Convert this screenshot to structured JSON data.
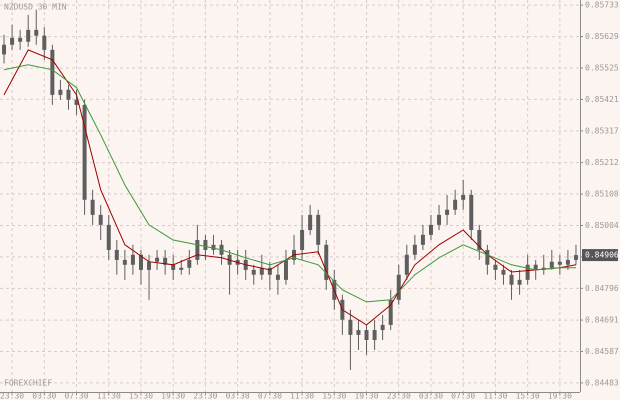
{
  "chart_data": {
    "type": "candlestick",
    "title": "NZDUSD 30 MIN",
    "watermark": "FOREXCHIEF",
    "ylim": [
      0.84453,
      0.8575
    ],
    "yticks": [
      0.85733,
      0.85629,
      0.85525,
      0.85421,
      0.85317,
      0.85212,
      0.85108,
      0.85004,
      {
        "value": 0.849,
        "label": "0.84900"
      },
      0.84796,
      0.84691,
      0.84587,
      0.84483
    ],
    "xlim": [
      -0.5,
      71.5
    ],
    "xticks": [
      {
        "value": 1,
        "label": "23:30"
      },
      {
        "value": 5,
        "label": "03:30"
      },
      {
        "value": 9,
        "label": "07:30"
      },
      {
        "value": 13,
        "label": "11:30"
      },
      {
        "value": 17,
        "label": "15:30"
      },
      {
        "value": 21,
        "label": "19:30"
      },
      {
        "value": 25,
        "label": "23:30"
      },
      {
        "value": 29,
        "label": "03:30"
      },
      {
        "value": 33,
        "label": "07:30"
      },
      {
        "value": 37,
        "label": "11:30"
      },
      {
        "value": 41,
        "label": "15:30"
      },
      {
        "value": 45,
        "label": "19:30"
      },
      {
        "value": 49,
        "label": "23:30"
      },
      {
        "value": 53,
        "label": "03:30"
      },
      {
        "value": 57,
        "label": "07:30"
      },
      {
        "value": 61,
        "label": "11:30"
      },
      {
        "value": 65,
        "label": "15:30"
      },
      {
        "value": 69,
        "label": "19:30"
      }
    ],
    "grid": true,
    "candle_color": "#5e5e5e",
    "open": [
      0.8557,
      0.85602,
      0.85625,
      0.85612,
      0.85651,
      0.85632,
      0.85585,
      0.85436,
      0.85453,
      0.8542,
      0.85403,
      0.85089,
      0.85039,
      0.85006,
      0.84923,
      0.8489,
      0.84874,
      0.84907,
      0.84857,
      0.84884,
      0.84897,
      0.84874,
      0.84857,
      0.84864,
      0.8489,
      0.84956,
      0.84923,
      0.8494,
      0.84907,
      0.84874,
      0.8489,
      0.84857,
      0.84841,
      0.84864,
      0.84841,
      0.84824,
      0.8489,
      0.84923,
      0.84989,
      0.85039,
      0.8494,
      0.84824,
      0.84758,
      0.84692,
      0.84642,
      0.84658,
      0.84625,
      0.84658,
      0.84675,
      0.84758,
      0.84841,
      0.84907,
      0.8494,
      0.84973,
      0.85006,
      0.85039,
      0.85056,
      0.85089,
      0.85105,
      0.84989,
      0.84923,
      0.84874,
      0.84857,
      0.84841,
      0.84808,
      0.84824,
      0.84874,
      0.84857,
      0.84864,
      0.84884,
      0.84874,
      0.8489
    ],
    "high": [
      0.85635,
      0.85668,
      0.85651,
      0.85701,
      0.85718,
      0.8566,
      0.85602,
      0.85486,
      0.85469,
      0.85453,
      0.8542,
      0.85122,
      0.85072,
      0.85039,
      0.84956,
      0.84923,
      0.8494,
      0.84923,
      0.84907,
      0.84923,
      0.84923,
      0.84907,
      0.8489,
      0.84923,
      0.85006,
      0.84973,
      0.84973,
      0.84956,
      0.84923,
      0.84923,
      0.84923,
      0.84874,
      0.84907,
      0.84884,
      0.84874,
      0.84923,
      0.84973,
      0.85039,
      0.85072,
      0.85056,
      0.84956,
      0.84857,
      0.84775,
      0.84725,
      0.84692,
      0.84675,
      0.84692,
      0.84708,
      0.84791,
      0.84874,
      0.8494,
      0.84973,
      0.85006,
      0.85039,
      0.85072,
      0.85105,
      0.85122,
      0.85155,
      0.85122,
      0.85006,
      0.8494,
      0.8489,
      0.84874,
      0.84857,
      0.84857,
      0.84907,
      0.8489,
      0.84907,
      0.84923,
      0.84907,
      0.84923,
      0.8494
    ],
    "low": [
      0.8554,
      0.85585,
      0.85585,
      0.85595,
      0.85602,
      0.85552,
      0.85403,
      0.8542,
      0.85387,
      0.8537,
      0.85039,
      0.85006,
      0.84956,
      0.8489,
      0.84841,
      0.84824,
      0.84841,
      0.84808,
      0.84758,
      0.84857,
      0.84841,
      0.84824,
      0.84841,
      0.84841,
      0.84874,
      0.8489,
      0.84907,
      0.84874,
      0.84775,
      0.84841,
      0.84824,
      0.84808,
      0.84824,
      0.84791,
      0.84775,
      0.84808,
      0.84874,
      0.8489,
      0.84973,
      0.84907,
      0.84791,
      0.84725,
      0.84642,
      0.84526,
      0.84592,
      0.84576,
      0.84592,
      0.84625,
      0.84658,
      0.84742,
      0.84824,
      0.8489,
      0.84923,
      0.84956,
      0.84989,
      0.85006,
      0.85039,
      0.85056,
      0.84956,
      0.8489,
      0.84841,
      0.84824,
      0.84808,
      0.84758,
      0.84775,
      0.84808,
      0.84824,
      0.84841,
      0.84857,
      0.84841,
      0.84857,
      0.84874
    ],
    "close": [
      0.85602,
      0.85625,
      0.85612,
      0.85651,
      0.85632,
      0.85585,
      0.85436,
      0.85453,
      0.8542,
      0.85403,
      0.85089,
      0.85039,
      0.85006,
      0.84923,
      0.8489,
      0.84874,
      0.84907,
      0.84857,
      0.84884,
      0.84897,
      0.84874,
      0.84857,
      0.84864,
      0.8489,
      0.84956,
      0.84923,
      0.8494,
      0.84907,
      0.84874,
      0.8489,
      0.84857,
      0.84841,
      0.84864,
      0.84841,
      0.84824,
      0.8489,
      0.84923,
      0.84989,
      0.85039,
      0.8494,
      0.84824,
      0.84758,
      0.84692,
      0.84642,
      0.84658,
      0.84625,
      0.84658,
      0.84675,
      0.84758,
      0.84841,
      0.84907,
      0.8494,
      0.84973,
      0.85006,
      0.85039,
      0.85056,
      0.85089,
      0.85105,
      0.84989,
      0.84923,
      0.84874,
      0.84857,
      0.84841,
      0.84808,
      0.84824,
      0.84874,
      0.84857,
      0.84864,
      0.84884,
      0.84874,
      0.8489,
      0.84906
    ],
    "series": [
      {
        "color": "#9b0000",
        "x": [
          0,
          3,
          6,
          9,
          12,
          15,
          18,
          21,
          24,
          27,
          30,
          33,
          36,
          39,
          42,
          45,
          48,
          51,
          54,
          57,
          60,
          63,
          66,
          69,
          71
        ],
        "values": [
          0.85436,
          0.85585,
          0.85552,
          0.85436,
          0.85122,
          0.8494,
          0.84884,
          0.84874,
          0.84907,
          0.84897,
          0.84874,
          0.84857,
          0.84907,
          0.84917,
          0.84725,
          0.84675,
          0.84741,
          0.84874,
          0.8494,
          0.84989,
          0.84907,
          0.8485,
          0.84857,
          0.84864,
          0.84874
        ]
      },
      {
        "color": "#3a9a3a",
        "x": [
          0,
          3,
          6,
          9,
          12,
          15,
          18,
          21,
          24,
          27,
          30,
          33,
          36,
          39,
          42,
          45,
          48,
          51,
          54,
          57,
          60,
          63,
          66,
          69,
          71
        ],
        "values": [
          0.85519,
          0.85536,
          0.85519,
          0.8546,
          0.85304,
          0.85138,
          0.85006,
          0.84956,
          0.8494,
          0.84923,
          0.84897,
          0.84874,
          0.84897,
          0.84874,
          0.84791,
          0.84751,
          0.84758,
          0.84841,
          0.84897,
          0.8494,
          0.84907,
          0.84874,
          0.84857,
          0.84864,
          0.84864
        ]
      }
    ],
    "last_price": 0.84906
  }
}
